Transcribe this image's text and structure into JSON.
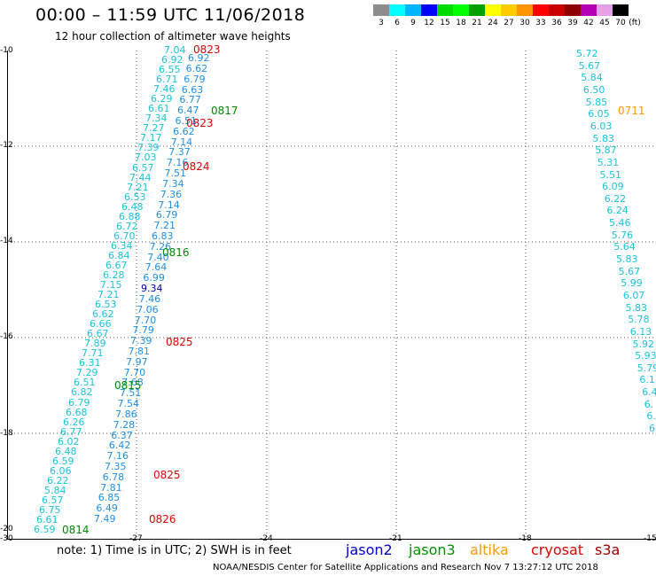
{
  "title": "00:00 – 11:59 UTC 11/06/2018",
  "subtitle": "12 hour collection of altimeter wave heights",
  "legend": {
    "colors": [
      "#8c8c8c",
      "#00ffff",
      "#00b4ff",
      "#0000ff",
      "#00dc00",
      "#00ff00",
      "#00a000",
      "#ffff00",
      "#ffcc00",
      "#ff9600",
      "#ff0000",
      "#c80000",
      "#8c0000",
      "#b400b4",
      "#e6a0e6",
      "#000000"
    ],
    "values": [
      "3",
      "6",
      "9",
      "12",
      "15",
      "18",
      "21",
      "24",
      "27",
      "30",
      "33",
      "36",
      "39",
      "42",
      "45",
      "70",
      "(ft)"
    ]
  },
  "axes": {
    "y_ticks": [
      "-10",
      "-12",
      "-14",
      "-16",
      "-18",
      "-20"
    ],
    "x_ticks": [
      "-30",
      "-27",
      "-24",
      "-21",
      "-18",
      "-15"
    ],
    "xlim": [
      -30,
      -15
    ],
    "ylim": [
      -20,
      -10
    ]
  },
  "passes": [
    {
      "label": "0823",
      "color": "#e00000"
    },
    {
      "label": "0817",
      "color": "#008a00"
    },
    {
      "label": "0823",
      "color": "#e00000"
    },
    {
      "label": "0824",
      "color": "#e00000"
    },
    {
      "label": "0816",
      "color": "#008a00"
    },
    {
      "label": "0825",
      "color": "#e00000"
    },
    {
      "label": "0815",
      "color": "#008a00"
    },
    {
      "label": "0825",
      "color": "#e00000"
    },
    {
      "label": "0826",
      "color": "#e00000"
    },
    {
      "label": "0814",
      "color": "#008a00"
    },
    {
      "label": "0711",
      "color": "#ff9900"
    }
  ],
  "track_a": [
    "7.04",
    "6.92",
    "6.55",
    "6.71",
    "7.46",
    "6.29",
    "6.61",
    "7.34",
    "7.27",
    "7.17",
    "7.39",
    "7.03",
    "6.57",
    "7.44",
    "7.21",
    "6.53",
    "6.48",
    "6.88",
    "6.72",
    "6.70",
    "6.34",
    "6.84",
    "6.67",
    "6.28",
    "7.15",
    "7.21",
    "6.53",
    "6.62",
    "6.66",
    "6.67",
    "7.89",
    "7.71",
    "6.31",
    "7.29",
    "6.51",
    "6.82",
    "6.79",
    "6.68",
    "6.26",
    "6.77",
    "6.02",
    "6.48",
    "6.59",
    "6.06",
    "6.22",
    "5.84",
    "6.57",
    "6.75",
    "6.61",
    "6.59"
  ],
  "track_b": [
    "6.92",
    "6.62",
    "6.79",
    "6.63",
    "6.77",
    "6.47",
    "6.51",
    "6.62",
    "7.14",
    "7.37",
    "7.16",
    "7.51",
    "7.34",
    "7.36",
    "7.14",
    "6.79",
    "7.21",
    "6.83",
    "7.26",
    "7.40",
    "7.64",
    "6.99",
    "9.34",
    "7.46",
    "7.06",
    "7.70",
    "7.79",
    "7.39",
    "7.81",
    "7.97",
    "7.70",
    "7.68",
    "7.51",
    "7.54",
    "7.86",
    "7.28",
    "6.37",
    "6.42",
    "7.16",
    "7.35",
    "6.78",
    "7.81",
    "6.85",
    "6.49",
    "7.49"
  ],
  "track_c": [
    "5.72",
    "5.67",
    "5.84",
    "6.50",
    "5.85",
    "6.05",
    "6.03",
    "5.83",
    "5.87",
    "5.31",
    "5.51",
    "6.09",
    "6.22",
    "6.24",
    "5.46",
    "5.76",
    "5.64",
    "5.83",
    "5.67",
    "5.99",
    "6.07",
    "5.83",
    "5.78",
    "6.13",
    "5.92",
    "5.93",
    "5.79",
    "6.1",
    "6.4",
    "6.",
    "6.",
    "6."
  ],
  "satellites": [
    {
      "name": "jason2",
      "color": "#0000cc"
    },
    {
      "name": "jason3",
      "color": "#009000"
    },
    {
      "name": "altika",
      "color": "#ff9900"
    },
    {
      "name": "cryosat",
      "color": "#e00000"
    },
    {
      "name": "s3a",
      "color": "#a00000"
    }
  ],
  "note": "note: 1) Time is in UTC; 2) SWH is in feet",
  "credit": "NOAA/NESDIS Center for Satellite Applications and Research   Nov  7 13:27:12 UTC 2018"
}
